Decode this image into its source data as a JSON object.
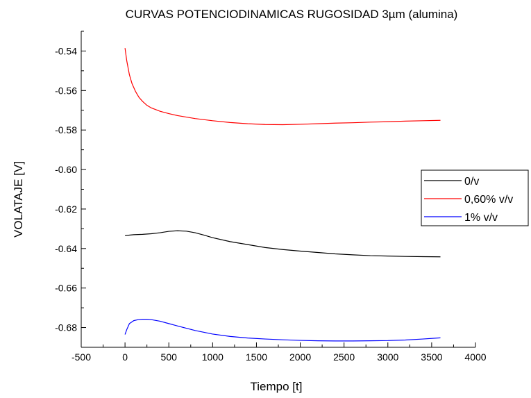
{
  "chart_data": {
    "type": "line",
    "title": "CURVAS POTENCIODINAMICAS RUGOSIDAD 3µm (alumina)",
    "xlabel": "Tiempo [t]",
    "ylabel": "VOLATAJE [V]",
    "xlim": [
      -500,
      4000
    ],
    "ylim": [
      -0.69,
      -0.53
    ],
    "xticks": [
      -500,
      0,
      500,
      1000,
      1500,
      2000,
      2500,
      3000,
      3500,
      4000
    ],
    "xtick_labels": [
      "-500",
      "0",
      "500",
      "1000",
      "1500",
      "2000",
      "2500",
      "3000",
      "3500",
      "4000"
    ],
    "yticks": [
      -0.54,
      -0.56,
      -0.58,
      -0.6,
      -0.62,
      -0.64,
      -0.66,
      -0.68
    ],
    "ytick_labels": [
      "-0.54",
      "-0.56",
      "-0.58",
      "-0.60",
      "-0.62",
      "-0.64",
      "-0.66",
      "-0.68"
    ],
    "grid": false,
    "legend_position": "right",
    "series": [
      {
        "name": "0/v",
        "color": "#000000",
        "x": [
          0,
          50,
          100,
          200,
          300,
          400,
          500,
          600,
          700,
          800,
          900,
          1000,
          1200,
          1400,
          1600,
          1800,
          2000,
          2200,
          2400,
          2600,
          2800,
          3000,
          3200,
          3400,
          3600
        ],
        "y": [
          -0.6335,
          -0.6332,
          -0.633,
          -0.6328,
          -0.6325,
          -0.632,
          -0.6313,
          -0.631,
          -0.6312,
          -0.632,
          -0.6332,
          -0.6345,
          -0.6365,
          -0.638,
          -0.6395,
          -0.6405,
          -0.6413,
          -0.642,
          -0.6427,
          -0.6432,
          -0.6436,
          -0.6438,
          -0.644,
          -0.6441,
          -0.6442
        ]
      },
      {
        "name": "0,60% v/v",
        "color": "#ff0000",
        "x": [
          0,
          20,
          50,
          80,
          120,
          160,
          200,
          250,
          300,
          400,
          500,
          600,
          800,
          1000,
          1200,
          1400,
          1600,
          1800,
          2000,
          2200,
          2400,
          2600,
          2800,
          3000,
          3200,
          3400,
          3600
        ],
        "y": [
          -0.5385,
          -0.545,
          -0.552,
          -0.5565,
          -0.5605,
          -0.5635,
          -0.5655,
          -0.5675,
          -0.5688,
          -0.5705,
          -0.5717,
          -0.5727,
          -0.5742,
          -0.5753,
          -0.5762,
          -0.5768,
          -0.5772,
          -0.5773,
          -0.5771,
          -0.5768,
          -0.5765,
          -0.5763,
          -0.576,
          -0.5758,
          -0.5755,
          -0.5753,
          -0.5751
        ]
      },
      {
        "name": "1% v/v",
        "color": "#0000ff",
        "x": [
          0,
          20,
          50,
          100,
          150,
          200,
          250,
          300,
          400,
          500,
          600,
          800,
          1000,
          1200,
          1400,
          1600,
          1800,
          2000,
          2200,
          2400,
          2600,
          2800,
          3000,
          3200,
          3400,
          3600
        ],
        "y": [
          -0.6835,
          -0.681,
          -0.678,
          -0.6765,
          -0.676,
          -0.6758,
          -0.6758,
          -0.676,
          -0.6768,
          -0.678,
          -0.6792,
          -0.6815,
          -0.6833,
          -0.6845,
          -0.6853,
          -0.6858,
          -0.6862,
          -0.6865,
          -0.6867,
          -0.6868,
          -0.6868,
          -0.6867,
          -0.6866,
          -0.6863,
          -0.6858,
          -0.6852
        ]
      }
    ]
  }
}
